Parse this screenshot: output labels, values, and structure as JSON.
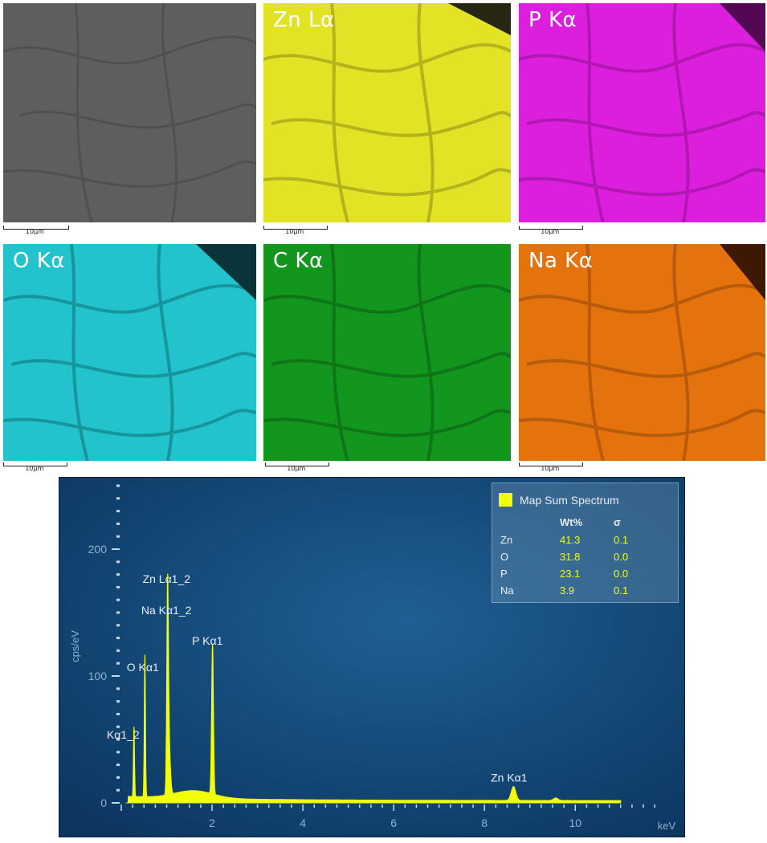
{
  "maps": [
    {
      "id": "se",
      "label": "",
      "scale": "10µm",
      "color": "#6b6b6b"
    },
    {
      "id": "zn",
      "label": "Zn Lα",
      "scale": "10µm",
      "color": "#e8e82a"
    },
    {
      "id": "p",
      "label": "P Kα",
      "scale": "10µm",
      "color": "#e01ee0"
    },
    {
      "id": "o",
      "label": "O Kα",
      "scale": "10µm",
      "color": "#24c8d2"
    },
    {
      "id": "c",
      "label": "C Kα",
      "scale": "10µm",
      "color": "#159a20"
    },
    {
      "id": "na",
      "label": "Na Kα",
      "scale": "10µm",
      "color": "#e8770e"
    }
  ],
  "legend": {
    "title": "Map Sum Spectrum",
    "col_wt": "Wt%",
    "col_sigma": "σ",
    "rows": [
      {
        "element": "Zn",
        "wt": "41.3",
        "sigma": "0.1"
      },
      {
        "element": "O",
        "wt": "31.8",
        "sigma": "0.0"
      },
      {
        "element": "P",
        "wt": "23.1",
        "sigma": "0.0"
      },
      {
        "element": "Na",
        "wt": "3.9",
        "sigma": "0.1"
      }
    ]
  },
  "chart_data": {
    "type": "line",
    "title": "",
    "xlabel": "keV",
    "ylabel": "cps/eV",
    "xlim": [
      0,
      11.8
    ],
    "ylim": [
      0,
      250
    ],
    "x_ticks": [
      2,
      4,
      6,
      8,
      10
    ],
    "y_ticks": [
      0,
      100,
      200
    ],
    "grid": false,
    "legend_position": "top-right",
    "series_color": "#f2ff0b",
    "peaks": [
      {
        "x": 0.28,
        "y": 57,
        "label": "Kα1_2"
      },
      {
        "x": 0.52,
        "y": 114,
        "label": "O Kα1"
      },
      {
        "x": 1.02,
        "y": 162,
        "label": "Zn Lα1_2"
      },
      {
        "x": 1.04,
        "y": 150,
        "label": "Na Kα1_2"
      },
      {
        "x": 2.01,
        "y": 126,
        "label": "P Kα1"
      },
      {
        "x": 8.64,
        "y": 13,
        "label": "Zn Kα1"
      },
      {
        "x": 9.57,
        "y": 3,
        "label": ""
      }
    ]
  }
}
